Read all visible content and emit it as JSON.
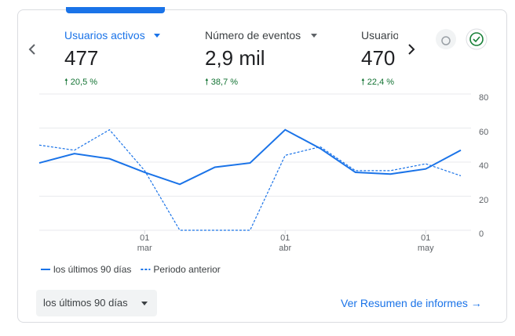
{
  "metrics": [
    {
      "name": "Usuarios activos",
      "value": "477",
      "change": "20,5 %"
    },
    {
      "name": "Número de eventos",
      "value": "2,9 mil",
      "change": "38,7 %"
    },
    {
      "name": "Usuarios nuevos",
      "value": "470",
      "change": "22,4 %"
    }
  ],
  "chart_data": {
    "type": "line",
    "categories": [
      null,
      null,
      null,
      "01\nmar",
      null,
      null,
      null,
      "01\nabr",
      null,
      null,
      null,
      "01\nmay",
      null
    ],
    "series": [
      {
        "name": "los últimos 90 días",
        "color": "#1a73e8",
        "line_style": "solid",
        "values": [
          39.5,
          45,
          42,
          34,
          27,
          37,
          39.5,
          59,
          48,
          34,
          33,
          36,
          47
        ]
      },
      {
        "name": "Periodo anterior",
        "color": "#1a73e8",
        "line_style": "dashed",
        "values": [
          50,
          47,
          59,
          35,
          0,
          0,
          0,
          44,
          49,
          35,
          35,
          39,
          32
        ]
      }
    ],
    "ylim": [
      0,
      80
    ],
    "yticks": [
      0,
      20,
      40,
      60,
      80
    ],
    "grid": true
  },
  "date_range": "los últimos 90 días",
  "link": "Ver Resumen de informes"
}
